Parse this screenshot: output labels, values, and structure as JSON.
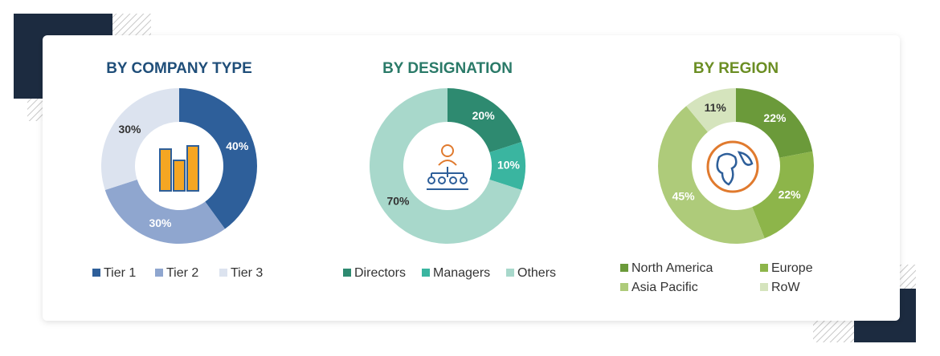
{
  "chart_data": [
    {
      "type": "pie",
      "title": "BY COMPANY TYPE",
      "title_color": "#1f4e79",
      "categories": [
        "Tier 1",
        "Tier 2",
        "Tier 3"
      ],
      "values": [
        40,
        30,
        30
      ],
      "value_labels": [
        "40%",
        "30%",
        "30%"
      ],
      "colors": [
        "#2e5f9a",
        "#8fa6cf",
        "#dce3ef"
      ]
    },
    {
      "type": "pie",
      "title": "BY DESIGNATION",
      "title_color": "#2a7a68",
      "categories": [
        "Directors",
        "Managers",
        "Others"
      ],
      "values": [
        20,
        10,
        70
      ],
      "value_labels": [
        "20%",
        "10%",
        "70%"
      ],
      "colors": [
        "#2e8a70",
        "#3ab5a0",
        "#a8d8cb"
      ]
    },
    {
      "type": "pie",
      "title": "BY REGION",
      "title_color": "#6b8e23",
      "categories": [
        "North America",
        "Europe",
        "Asia Pacific",
        "RoW"
      ],
      "values": [
        22,
        22,
        45,
        11
      ],
      "value_labels": [
        "22%",
        "22%",
        "45%",
        "11%"
      ],
      "colors": [
        "#6b9a3a",
        "#8db54a",
        "#aecb7a",
        "#d5e4bd"
      ]
    }
  ]
}
